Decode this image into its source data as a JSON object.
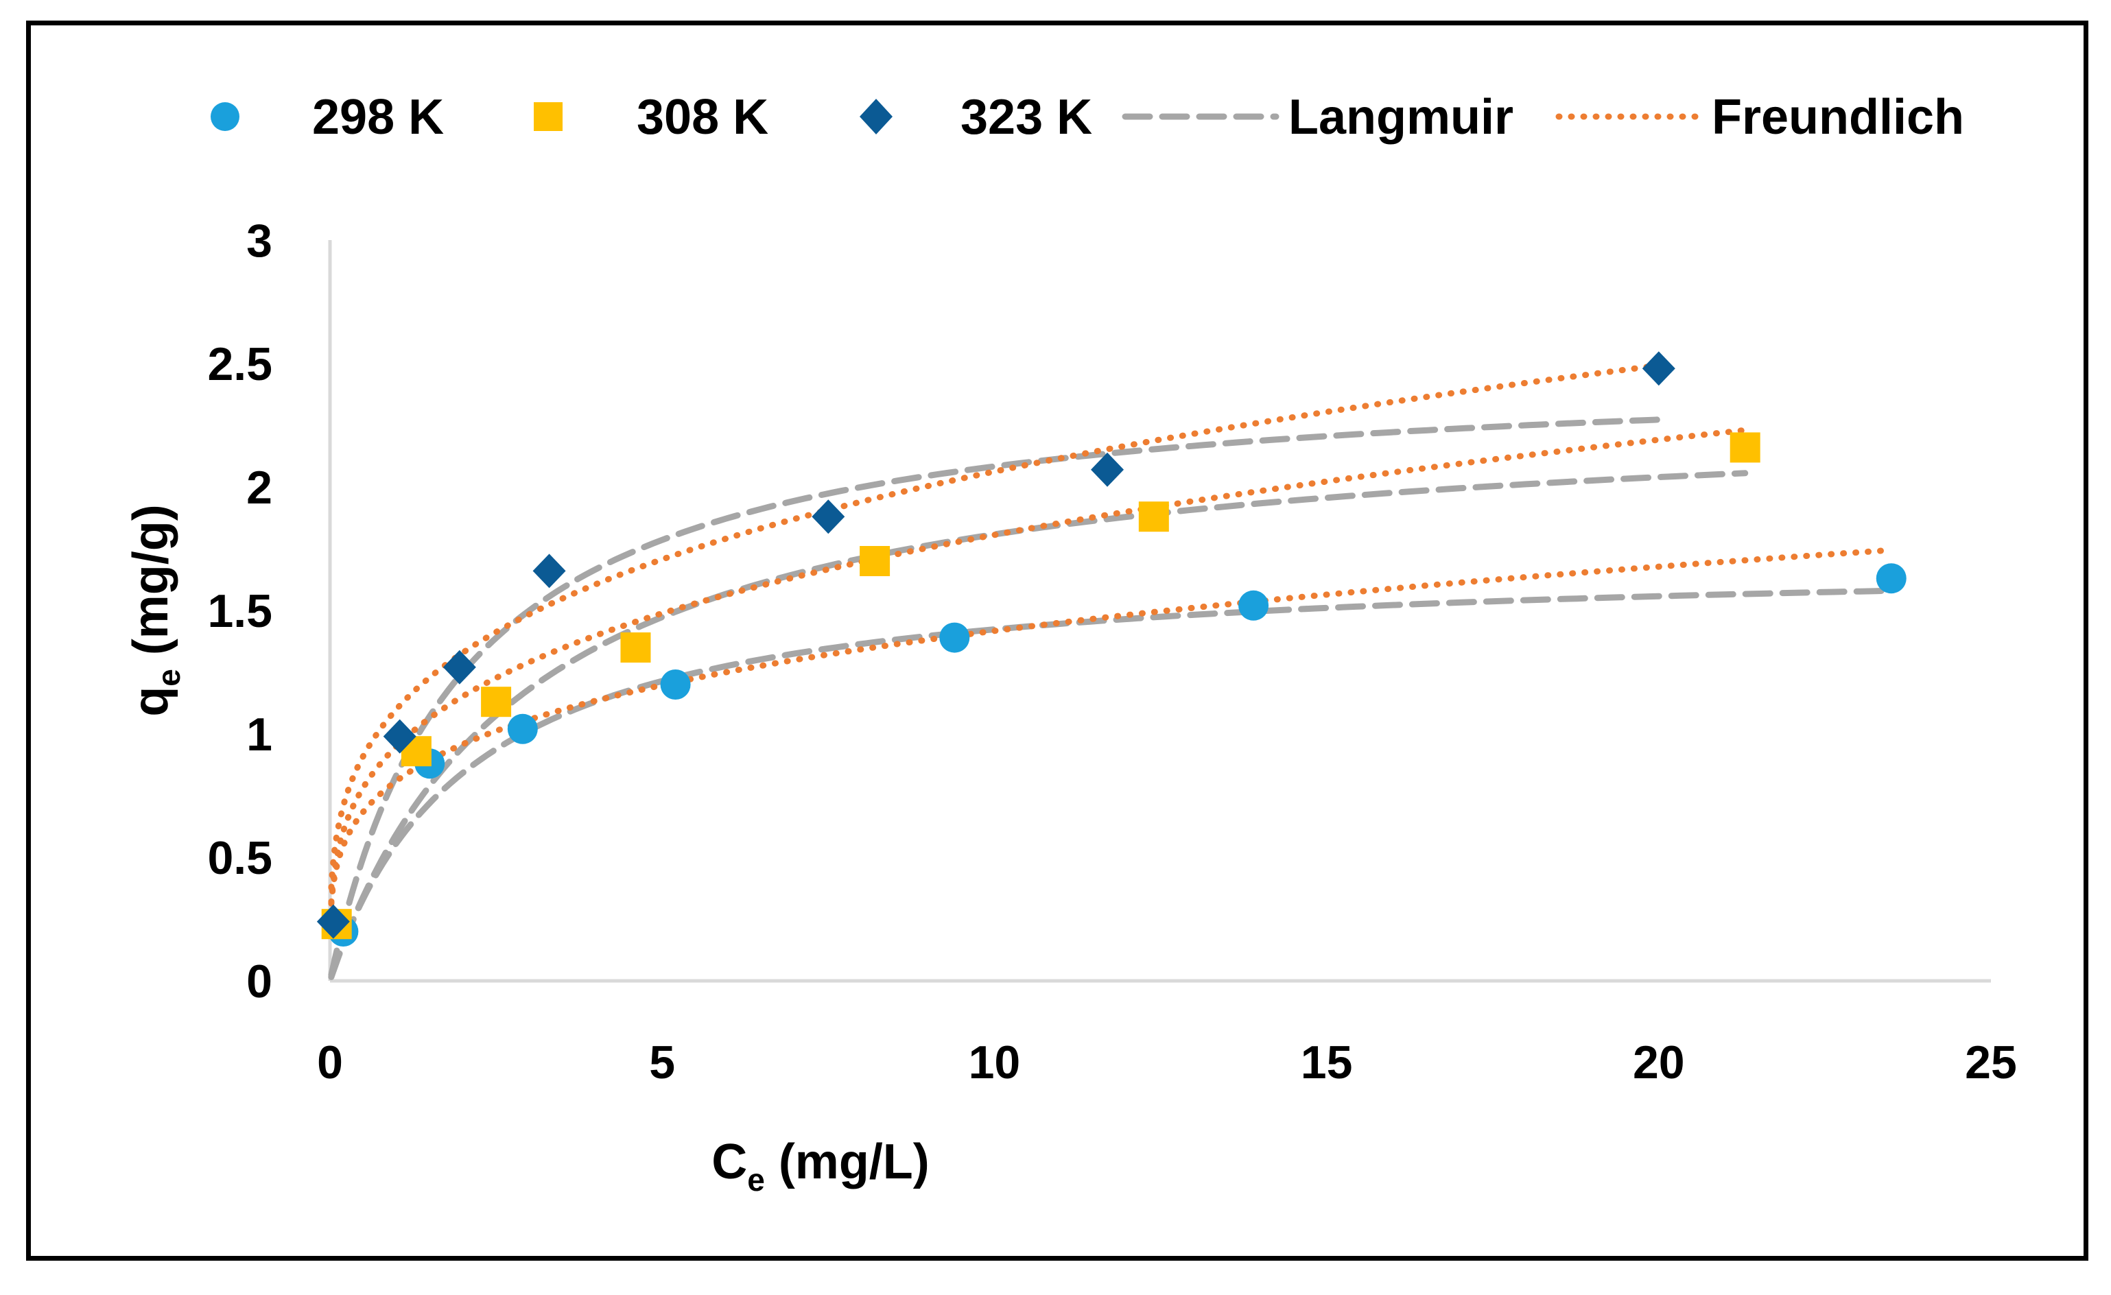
{
  "chart_data": {
    "type": "scatter",
    "xlabel": {
      "main": "C",
      "sub": "e",
      "rest": " (mg/L)"
    },
    "ylabel": {
      "main": "q",
      "sub": "e",
      "rest": " (mg/g)"
    },
    "xlim": [
      0,
      25
    ],
    "ylim": [
      0,
      3
    ],
    "x_ticks": [
      0,
      5,
      10,
      15,
      20,
      25
    ],
    "y_ticks": [
      0,
      0.5,
      1,
      1.5,
      2,
      2.5,
      3
    ],
    "x_tick_labels": [
      "0",
      "5",
      "10",
      "15",
      "20",
      "25"
    ],
    "y_tick_labels": [
      "0",
      "0.5",
      "1",
      "1.5",
      "2",
      "2.5",
      "3"
    ],
    "grid": false,
    "legend_position": "top",
    "series": [
      {
        "name": "298 K",
        "marker": "circle",
        "color": "#1aa0dc",
        "x": [
          0.2,
          1.5,
          2.9,
          5.2,
          9.4,
          13.9,
          23.5
        ],
        "y": [
          0.2,
          0.88,
          1.02,
          1.2,
          1.39,
          1.52,
          1.63
        ]
      },
      {
        "name": "308 K",
        "marker": "square",
        "color": "#ffc000",
        "x": [
          0.1,
          1.3,
          2.5,
          4.6,
          8.2,
          12.4,
          21.3
        ],
        "y": [
          0.23,
          0.93,
          1.13,
          1.35,
          1.7,
          1.88,
          2.16
        ]
      },
      {
        "name": "323 K",
        "marker": "diamond",
        "color": "#0b5a94",
        "x": [
          0.05,
          1.05,
          1.95,
          3.3,
          7.5,
          11.7,
          20.0
        ],
        "y": [
          0.24,
          0.99,
          1.27,
          1.66,
          1.88,
          2.07,
          2.48
        ]
      }
    ],
    "fits": [
      {
        "name": "Langmuir",
        "style": "dashed",
        "color": "#a6a6a6",
        "curves": [
          {
            "series": "298 K",
            "qm": 1.72,
            "K": 0.48,
            "xmax": 23.5
          },
          {
            "series": "308 K",
            "qm": 2.34,
            "K": 0.34,
            "xmax": 21.3
          },
          {
            "series": "323 K",
            "qm": 2.5,
            "K": 0.5,
            "xmax": 20.0
          }
        ]
      },
      {
        "name": "Freundlich",
        "style": "dotted",
        "color": "#ed7d31",
        "curves": [
          {
            "series": "298 K",
            "Kf": 0.81,
            "n_inv": 0.243,
            "xmax": 23.5
          },
          {
            "series": "308 K",
            "Kf": 0.95,
            "n_inv": 0.279,
            "xmax": 21.3
          },
          {
            "series": "323 K",
            "Kf": 1.1,
            "n_inv": 0.273,
            "xmax": 20.0
          }
        ]
      }
    ]
  },
  "legend": {
    "items": [
      {
        "label": "298 K"
      },
      {
        "label": "308 K"
      },
      {
        "label": "323 K"
      },
      {
        "label": "Langmuir"
      },
      {
        "label": "Freundlich"
      }
    ]
  }
}
